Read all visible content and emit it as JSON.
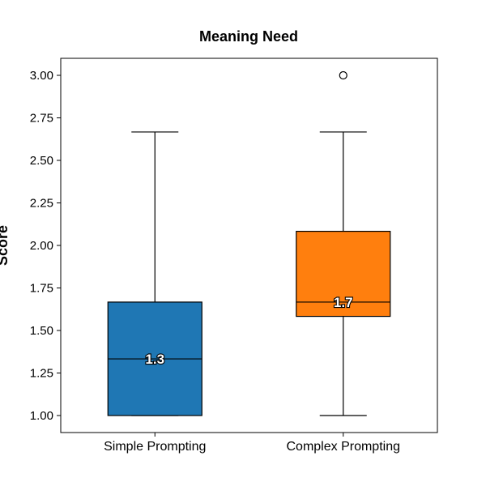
{
  "chart_data": {
    "type": "box",
    "title": "Meaning Need",
    "xlabel": "",
    "ylabel": "Score",
    "ylim": [
      0.9,
      3.1
    ],
    "yticks": [
      1.0,
      1.25,
      1.5,
      1.75,
      2.0,
      2.25,
      2.5,
      2.75,
      3.0
    ],
    "ytick_labels": [
      "1.00",
      "1.25",
      "1.50",
      "1.75",
      "2.00",
      "2.25",
      "2.50",
      "2.75",
      "3.00"
    ],
    "grid": false,
    "categories": [
      "Simple Prompting",
      "Complex Prompting"
    ],
    "boxes": [
      {
        "category": "Simple Prompting",
        "color": "#1f77b4",
        "whisker_low": 1.0,
        "q1": 1.0,
        "median": 1.333,
        "q3": 1.667,
        "whisker_high": 2.667,
        "outliers": [],
        "median_label": "1.3"
      },
      {
        "category": "Complex Prompting",
        "color": "#ff7f0e",
        "whisker_low": 1.0,
        "q1": 1.583,
        "median": 1.667,
        "q3": 2.083,
        "whisker_high": 2.667,
        "outliers": [
          3.0
        ],
        "median_label": "1.7"
      }
    ]
  }
}
